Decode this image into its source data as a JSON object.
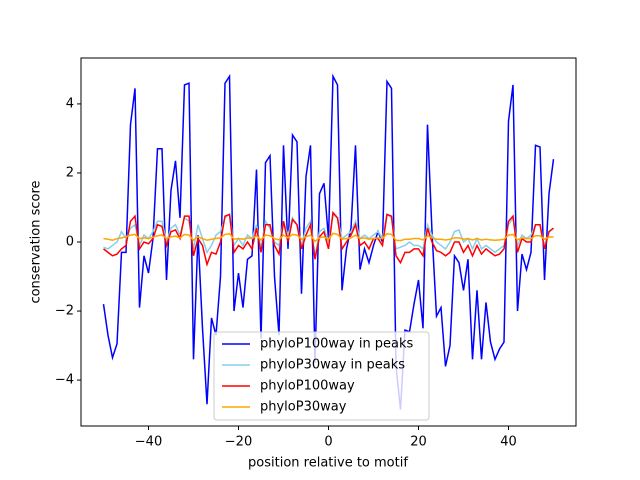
{
  "chart_data": {
    "type": "line",
    "xlabel": "position relative to motif",
    "ylabel": "conservation score",
    "legend": "lower center",
    "xlim": [
      -55,
      55
    ],
    "ylim": [
      -5.33,
      5.33
    ],
    "xticks": [
      {
        "value": -40,
        "label": "−40"
      },
      {
        "value": -20,
        "label": "−20"
      },
      0,
      20,
      40
    ],
    "yticks": [
      {
        "value": -4,
        "label": "−4"
      },
      {
        "value": -2,
        "label": "−2"
      },
      0,
      2,
      4
    ],
    "x": [
      -50,
      -49,
      -48,
      -47,
      -46,
      -45,
      -44,
      -43,
      -42,
      -41,
      -40,
      -39,
      -38,
      -37,
      -36,
      -35,
      -34,
      -33,
      -32,
      -31,
      -30,
      -29,
      -28,
      -27,
      -26,
      -25,
      -24,
      -23,
      -22,
      -21,
      -20,
      -19,
      -18,
      -17,
      -16,
      -15,
      -14,
      -13,
      -12,
      -11,
      -10,
      -9,
      -8,
      -7,
      -6,
      -5,
      -4,
      -3,
      -2,
      -1,
      0,
      1,
      2,
      3,
      4,
      5,
      6,
      7,
      8,
      9,
      10,
      11,
      12,
      13,
      14,
      15,
      16,
      17,
      18,
      19,
      20,
      21,
      22,
      23,
      24,
      25,
      26,
      27,
      28,
      29,
      30,
      31,
      32,
      33,
      34,
      35,
      36,
      37,
      38,
      39,
      40,
      41,
      42,
      43,
      44,
      45,
      46,
      47,
      48,
      49,
      50
    ],
    "series": [
      {
        "name": "phyloP100way in peaks",
        "color": "#0000ff",
        "values": [
          -1.8,
          -2.7,
          -3.35,
          -2.95,
          -0.3,
          -0.3,
          3.4,
          4.45,
          -1.9,
          -0.4,
          -0.9,
          0.1,
          2.7,
          2.7,
          -1.1,
          1.5,
          2.35,
          0.7,
          4.55,
          4.6,
          -3.4,
          0.2,
          -2.5,
          -4.7,
          -2.2,
          -2.7,
          -1.0,
          4.6,
          4.8,
          -2.0,
          -0.9,
          -1.9,
          -0.5,
          -0.4,
          2.1,
          -2.8,
          2.3,
          2.5,
          -1.0,
          -2.7,
          2.8,
          -0.2,
          3.1,
          2.9,
          -1.5,
          1.9,
          2.8,
          -3.5,
          1.4,
          1.7,
          0.1,
          4.8,
          4.55,
          -1.4,
          -0.2,
          0.4,
          2.8,
          -0.8,
          -0.2,
          -0.6,
          -0.1,
          0.3,
          0.0,
          4.65,
          4.45,
          -3.6,
          -4.85,
          -2.55,
          -2.6,
          -1.8,
          -1.1,
          -2.5,
          3.4,
          0.3,
          -2.15,
          -1.9,
          -3.6,
          -3.0,
          -0.4,
          -0.6,
          -1.4,
          -0.5,
          -3.4,
          -1.4,
          -3.4,
          -1.75,
          -2.9,
          -3.4,
          -3.1,
          -2.9,
          3.5,
          4.55,
          -2.0,
          -0.35,
          -0.8,
          -0.3,
          2.8,
          2.75,
          -1.1,
          1.4,
          2.4
        ]
      },
      {
        "name": "phyloP30way in peaks",
        "color": "#87ceeb",
        "values": [
          -0.15,
          -0.2,
          -0.1,
          0.0,
          0.3,
          0.1,
          0.4,
          0.5,
          -0.1,
          0.2,
          0.1,
          0.3,
          0.6,
          0.6,
          0.0,
          0.4,
          0.5,
          0.2,
          0.7,
          0.6,
          -0.2,
          0.5,
          0.1,
          -0.3,
          -0.1,
          0.2,
          0.3,
          0.7,
          0.8,
          -0.1,
          0.1,
          -0.1,
          0.2,
          0.1,
          0.5,
          -0.2,
          0.6,
          0.4,
          0.0,
          -0.1,
          0.6,
          0.2,
          0.7,
          0.5,
          -0.1,
          0.4,
          0.6,
          -0.4,
          0.3,
          0.4,
          0.0,
          0.8,
          0.7,
          0.1,
          0.2,
          0.3,
          0.6,
          0.1,
          0.2,
          0.1,
          0.2,
          0.3,
          0.1,
          0.8,
          0.7,
          -0.2,
          -0.15,
          -0.1,
          0.0,
          -0.1,
          -0.1,
          -0.2,
          0.5,
          0.2,
          0.0,
          -0.1,
          -0.2,
          0.0,
          0.3,
          0.35,
          0.0,
          0.1,
          -0.2,
          0.1,
          -0.2,
          -0.1,
          -0.2,
          -0.3,
          -0.2,
          -0.1,
          0.5,
          0.7,
          -0.1,
          0.2,
          0.1,
          0.2,
          0.5,
          0.5,
          -0.1,
          0.3,
          0.4
        ]
      },
      {
        "name": "phyloP100way",
        "color": "#ff0000",
        "values": [
          -0.2,
          -0.3,
          -0.4,
          -0.35,
          -0.2,
          -0.1,
          0.6,
          0.75,
          -0.2,
          0.0,
          -0.05,
          0.1,
          0.5,
          0.45,
          -0.1,
          0.3,
          0.35,
          0.1,
          0.75,
          0.75,
          -0.4,
          0.1,
          -0.1,
          -0.65,
          -0.3,
          -0.35,
          0.0,
          0.75,
          0.8,
          -0.3,
          -0.1,
          -0.2,
          0.0,
          -0.2,
          0.4,
          -0.3,
          0.5,
          0.5,
          -0.1,
          -0.35,
          0.6,
          0.0,
          0.65,
          0.5,
          -0.2,
          0.2,
          0.5,
          -0.5,
          0.15,
          0.3,
          -0.2,
          0.85,
          0.7,
          -0.2,
          0.0,
          0.2,
          0.5,
          -0.1,
          0.0,
          -0.2,
          0.1,
          0.1,
          -0.1,
          0.8,
          0.75,
          -0.4,
          -0.6,
          -0.3,
          -0.3,
          -0.2,
          -0.2,
          -0.4,
          0.4,
          0.0,
          -0.25,
          -0.3,
          -0.4,
          -0.3,
          0.0,
          0.0,
          -0.3,
          -0.1,
          -0.4,
          -0.1,
          -0.35,
          -0.2,
          -0.3,
          -0.4,
          -0.35,
          -0.2,
          0.6,
          0.75,
          -0.3,
          0.1,
          0.0,
          0.0,
          0.5,
          0.5,
          -0.2,
          0.3,
          0.4
        ]
      },
      {
        "name": "phyloP30way",
        "color": "#ffa500",
        "values": [
          0.1,
          0.08,
          0.05,
          0.1,
          0.12,
          0.15,
          0.2,
          0.22,
          0.1,
          0.12,
          0.1,
          0.14,
          0.18,
          0.2,
          0.1,
          0.15,
          0.17,
          0.12,
          0.22,
          0.2,
          0.05,
          0.15,
          0.1,
          0.05,
          0.08,
          0.1,
          0.12,
          0.22,
          0.24,
          0.08,
          0.1,
          0.08,
          0.12,
          0.1,
          0.18,
          0.06,
          0.2,
          0.18,
          0.1,
          0.06,
          0.2,
          0.12,
          0.22,
          0.2,
          0.08,
          0.15,
          0.2,
          0.02,
          0.12,
          0.15,
          0.08,
          0.25,
          0.22,
          0.08,
          0.1,
          0.12,
          0.2,
          0.1,
          0.12,
          0.08,
          0.1,
          0.12,
          0.1,
          0.24,
          0.22,
          0.05,
          0.04,
          0.08,
          0.08,
          0.1,
          0.1,
          0.06,
          0.18,
          0.12,
          0.08,
          0.08,
          0.06,
          0.08,
          0.12,
          0.12,
          0.08,
          0.1,
          0.06,
          0.1,
          0.06,
          0.08,
          0.06,
          0.05,
          0.06,
          0.08,
          0.2,
          0.22,
          0.06,
          0.12,
          0.1,
          0.1,
          0.18,
          0.18,
          0.08,
          0.14,
          0.15
        ]
      }
    ]
  }
}
